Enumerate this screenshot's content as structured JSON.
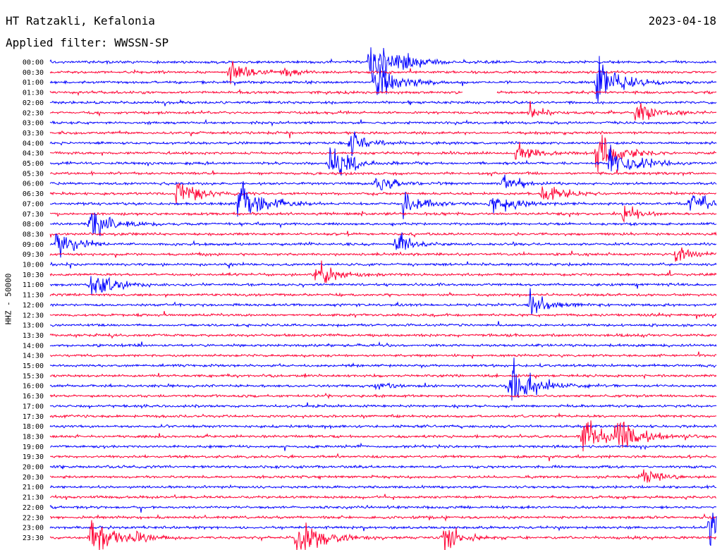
{
  "header": {
    "station": "HT Ratzakli, Kefalonia",
    "date": "2023-04-18",
    "filter": "Applied filter: WWSSN-SP"
  },
  "chart_data": {
    "type": "line",
    "kind": "helicorder (24-hour seismogram, 30-minute traces)",
    "ylabel": "HHZ - 50000",
    "colors": [
      "#0000ff",
      "#ff0033"
    ],
    "rows": [
      "00:00",
      "00:30",
      "01:00",
      "01:30",
      "02:00",
      "02:30",
      "03:00",
      "03:30",
      "04:00",
      "04:30",
      "05:00",
      "05:30",
      "06:00",
      "06:30",
      "07:00",
      "07:30",
      "08:00",
      "08:30",
      "09:00",
      "09:30",
      "10:00",
      "10:30",
      "11:00",
      "11:30",
      "12:00",
      "12:30",
      "13:00",
      "13:30",
      "14:00",
      "14:30",
      "15:00",
      "15:30",
      "16:00",
      "16:30",
      "17:00",
      "17:30",
      "18:00",
      "18:30",
      "19:00",
      "19:30",
      "20:00",
      "20:30",
      "21:00",
      "21:30",
      "22:00",
      "22:30",
      "23:00",
      "23:30"
    ],
    "data_gap": {
      "row": "01:30",
      "from_fraction": 0.62,
      "to_fraction": 0.67
    },
    "events": [
      {
        "row": "00:00",
        "at": 0.48,
        "amp": 1.0
      },
      {
        "row": "00:00",
        "at": 0.53,
        "amp": 0.3
      },
      {
        "row": "00:30",
        "at": 0.27,
        "amp": 0.5
      },
      {
        "row": "00:30",
        "at": 0.35,
        "amp": 0.3
      },
      {
        "row": "01:00",
        "at": 0.49,
        "amp": 0.8
      },
      {
        "row": "01:00",
        "at": 0.82,
        "amp": 1.0
      },
      {
        "row": "02:30",
        "at": 0.72,
        "amp": 0.3
      },
      {
        "row": "02:30",
        "at": 0.88,
        "amp": 0.6
      },
      {
        "row": "04:00",
        "at": 0.45,
        "amp": 0.5
      },
      {
        "row": "04:30",
        "at": 0.7,
        "amp": 0.5
      },
      {
        "row": "04:30",
        "at": 0.82,
        "amp": 0.9
      },
      {
        "row": "05:00",
        "at": 0.42,
        "amp": 0.8
      },
      {
        "row": "05:00",
        "at": 0.84,
        "amp": 0.9
      },
      {
        "row": "06:00",
        "at": 0.49,
        "amp": 0.4
      },
      {
        "row": "06:00",
        "at": 0.68,
        "amp": 0.4
      },
      {
        "row": "06:30",
        "at": 0.19,
        "amp": 0.6
      },
      {
        "row": "06:30",
        "at": 0.74,
        "amp": 0.5
      },
      {
        "row": "07:00",
        "at": 0.28,
        "amp": 1.0
      },
      {
        "row": "07:00",
        "at": 0.53,
        "amp": 0.6
      },
      {
        "row": "07:00",
        "at": 0.66,
        "amp": 0.7
      },
      {
        "row": "07:00",
        "at": 0.96,
        "amp": 0.6
      },
      {
        "row": "07:30",
        "at": 0.86,
        "amp": 0.4
      },
      {
        "row": "08:00",
        "at": 0.06,
        "amp": 0.7
      },
      {
        "row": "09:00",
        "at": 0.01,
        "amp": 0.6
      },
      {
        "row": "09:00",
        "at": 0.52,
        "amp": 0.5
      },
      {
        "row": "09:30",
        "at": 0.94,
        "amp": 0.4
      },
      {
        "row": "10:30",
        "at": 0.4,
        "amp": 0.6
      },
      {
        "row": "11:00",
        "at": 0.06,
        "amp": 0.8
      },
      {
        "row": "12:00",
        "at": 0.72,
        "amp": 0.6
      },
      {
        "row": "16:00",
        "at": 0.69,
        "amp": 1.0
      },
      {
        "row": "16:00",
        "at": 0.49,
        "amp": 0.3
      },
      {
        "row": "18:30",
        "at": 0.8,
        "amp": 0.8
      },
      {
        "row": "18:30",
        "at": 0.85,
        "amp": 0.8
      },
      {
        "row": "20:30",
        "at": 0.89,
        "amp": 0.4
      },
      {
        "row": "23:00",
        "at": 0.99,
        "amp": 0.8
      },
      {
        "row": "23:30",
        "at": 0.06,
        "amp": 0.9
      },
      {
        "row": "23:30",
        "at": 0.37,
        "amp": 1.0
      },
      {
        "row": "23:30",
        "at": 0.59,
        "amp": 0.6
      },
      {
        "row": "23:30",
        "at": 0.13,
        "amp": 0.3
      }
    ]
  }
}
